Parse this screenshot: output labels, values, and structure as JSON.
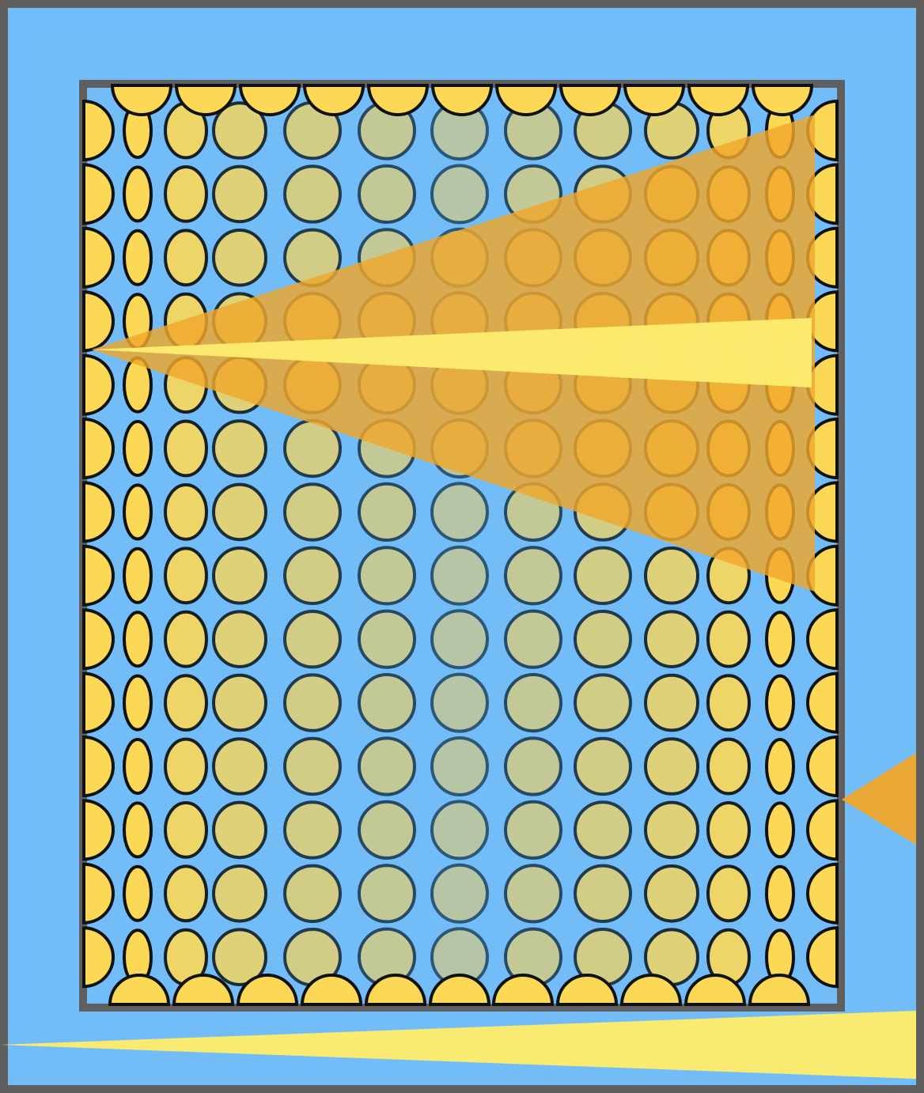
{
  "scene": {
    "kind": "bubble-grid-view",
    "rows": 14,
    "cols": 13,
    "boundary_bubble_count": {
      "top": 11,
      "bottom": 11,
      "left": 14,
      "right": 14
    }
  },
  "colors": {
    "background": "#72bdf7",
    "frame": "#5f5f5f",
    "bubble_edge": "#fbd957",
    "bubble_center": "#b5c5a6",
    "bubble_outline_edge": "#111111",
    "bubble_outline_center": "#2d5777",
    "beam_orange": "#f0a72b",
    "beam_yellow": "#fcec6f"
  },
  "icons": {
    "beam": "light-beam-icon",
    "bubble": "bubble-icon"
  }
}
